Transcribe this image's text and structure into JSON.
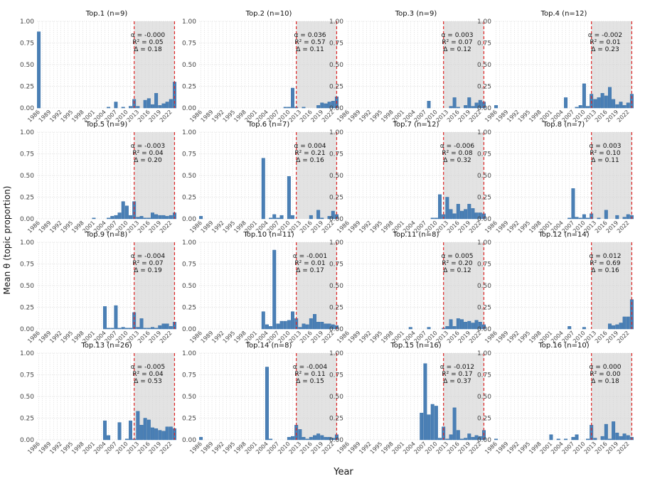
{
  "chart_data": {
    "type": "bar",
    "layout": "facet-grid 4x4",
    "xlabel": "Year",
    "ylabel": "Mean θ (topic proportion)",
    "ylim": [
      0,
      1.0
    ],
    "yticks": [
      "0.00",
      "0.25",
      "0.50",
      "0.75",
      "1.00"
    ],
    "grid": true,
    "bar_color": "#4a7fb5",
    "shade_color": "#e3e3e3",
    "line_color": "#dd2222",
    "xticks": [
      "1986",
      "1989",
      "1992",
      "1995",
      "1998",
      "2001",
      "2004",
      "2007",
      "2010",
      "2013",
      "2016",
      "2019",
      "2022"
    ],
    "year_range": [
      1986,
      2023
    ],
    "shade_range": [
      2012,
      2023
    ],
    "panels": [
      {
        "title": "Top.1 (n=9)",
        "alpha": "α = -0.000",
        "r2": "R² = 0.05",
        "delta": "Δ = 0.18",
        "x": [
          1986,
          2005,
          2007,
          2009,
          2011,
          2012,
          2013,
          2015,
          2016,
          2017,
          2018,
          2019,
          2020,
          2021,
          2022,
          2023
        ],
        "y": [
          0.88,
          0.01,
          0.07,
          0.01,
          0.02,
          0.1,
          0.02,
          0.09,
          0.11,
          0.04,
          0.17,
          0.03,
          0.05,
          0.07,
          0.1,
          0.3
        ]
      },
      {
        "title": "Top.2 (n=10)",
        "alpha": "α = 0.036",
        "r2": "R² = 0.57",
        "delta": "Δ = 0.11",
        "x": [
          2009,
          2010,
          2011,
          2012,
          2014,
          2018,
          2019,
          2020,
          2021,
          2022,
          2023
        ],
        "y": [
          0.01,
          0.01,
          0.23,
          0.01,
          0.01,
          0.03,
          0.06,
          0.05,
          0.07,
          0.08,
          0.13
        ]
      },
      {
        "title": "Top.3 (n=9)",
        "alpha": "α = 0.003",
        "r2": "R² = 0.07",
        "delta": "Δ = 0.12",
        "x": [
          2008,
          2014,
          2015,
          2016,
          2018,
          2019,
          2020,
          2021,
          2022,
          2023
        ],
        "y": [
          0.08,
          0.02,
          0.12,
          0.01,
          0.03,
          0.12,
          0.02,
          0.06,
          0.09,
          0.07
        ]
      },
      {
        "title": "Top.4 (n=12)",
        "alpha": "α = -0.002",
        "r2": "R² = 0.01",
        "delta": "Δ = 0.23",
        "x": [
          1986,
          2005,
          2008,
          2009,
          2010,
          2011,
          2012,
          2013,
          2014,
          2015,
          2016,
          2017,
          2018,
          2019,
          2020,
          2021,
          2022,
          2023
        ],
        "y": [
          0.03,
          0.12,
          0.01,
          0.03,
          0.28,
          0.02,
          0.16,
          0.1,
          0.12,
          0.17,
          0.14,
          0.24,
          0.1,
          0.04,
          0.07,
          0.03,
          0.06,
          0.16
        ]
      },
      {
        "title": "Top.5 (n=9)",
        "alpha": "α = -0.003",
        "r2": "R² = 0.04",
        "delta": "Δ = 0.20",
        "x": [
          2001,
          2005,
          2006,
          2007,
          2008,
          2009,
          2010,
          2011,
          2012,
          2013,
          2014,
          2015,
          2016,
          2017,
          2018,
          2019,
          2020,
          2021,
          2022,
          2023
        ],
        "y": [
          0.01,
          0.01,
          0.03,
          0.04,
          0.07,
          0.2,
          0.15,
          0.04,
          0.2,
          0.02,
          0.03,
          0.01,
          0.01,
          0.07,
          0.05,
          0.04,
          0.04,
          0.03,
          0.04,
          0.07
        ]
      },
      {
        "title": "Top.6 (n=7)",
        "alpha": "α = 0.004",
        "r2": "R² = 0.21",
        "delta": "Δ = 0.16",
        "x": [
          1986,
          2003,
          2005,
          2006,
          2007,
          2008,
          2010,
          2011,
          2016,
          2018,
          2019,
          2021,
          2022,
          2023
        ],
        "y": [
          0.03,
          0.7,
          0.01,
          0.05,
          0.01,
          0.04,
          0.49,
          0.04,
          0.04,
          0.1,
          0.01,
          0.03,
          0.09,
          0.05
        ]
      },
      {
        "title": "Top.7 (n=12)",
        "alpha": "α = -0.006",
        "r2": "R² = 0.08",
        "delta": "Δ = 0.32",
        "x": [
          2009,
          2010,
          2011,
          2012,
          2013,
          2014,
          2015,
          2016,
          2017,
          2018,
          2019,
          2020,
          2021,
          2022,
          2023
        ],
        "y": [
          0.01,
          0.01,
          0.28,
          0.05,
          0.25,
          0.11,
          0.06,
          0.17,
          0.09,
          0.11,
          0.17,
          0.12,
          0.07,
          0.07,
          0.06
        ]
      },
      {
        "title": "Top.8 (n=7)",
        "alpha": "α = 0.003",
        "r2": "R² = 0.10",
        "delta": "Δ = 0.11",
        "x": [
          2006,
          2007,
          2008,
          2009,
          2010,
          2011,
          2012,
          2014,
          2016,
          2019,
          2021,
          2022,
          2023
        ],
        "y": [
          0.01,
          0.35,
          0.02,
          0.01,
          0.05,
          0.01,
          0.06,
          0.01,
          0.1,
          0.04,
          0.02,
          0.05,
          0.04
        ]
      },
      {
        "title": "Top.9 (n=8)",
        "alpha": "α = -0.004",
        "r2": "R² = 0.07",
        "delta": "Δ = 0.19",
        "x": [
          2004,
          2005,
          2006,
          2007,
          2008,
          2009,
          2010,
          2011,
          2012,
          2013,
          2014,
          2015,
          2016,
          2017,
          2018,
          2019,
          2020,
          2021,
          2022,
          2023
        ],
        "y": [
          0.26,
          0.01,
          0.01,
          0.27,
          0.01,
          0.02,
          0.01,
          0.01,
          0.19,
          0.02,
          0.12,
          0.01,
          0.01,
          0.02,
          0.01,
          0.04,
          0.06,
          0.06,
          0.03,
          0.08
        ]
      },
      {
        "title": "Top.10 (n=11)",
        "alpha": "α = -0.001",
        "r2": "R² = 0.01",
        "delta": "Δ = 0.17",
        "x": [
          2003,
          2004,
          2005,
          2006,
          2007,
          2008,
          2009,
          2010,
          2011,
          2012,
          2013,
          2014,
          2015,
          2016,
          2017,
          2018,
          2019,
          2020,
          2021,
          2022,
          2023
        ],
        "y": [
          0.2,
          0.05,
          0.03,
          0.91,
          0.06,
          0.09,
          0.09,
          0.1,
          0.2,
          0.12,
          0.02,
          0.06,
          0.05,
          0.12,
          0.17,
          0.08,
          0.08,
          0.06,
          0.06,
          0.05,
          0.04
        ]
      },
      {
        "title": "Top.11 (n=8)",
        "alpha": "α = 0.005",
        "r2": "R² = 0.20",
        "delta": "Δ = 0.12",
        "x": [
          2003,
          2008,
          2012,
          2013,
          2014,
          2015,
          2016,
          2017,
          2018,
          2019,
          2020,
          2021,
          2022,
          2023
        ],
        "y": [
          0.02,
          0.02,
          0.01,
          0.03,
          0.11,
          0.03,
          0.12,
          0.11,
          0.08,
          0.09,
          0.07,
          0.1,
          0.08,
          0.05
        ]
      },
      {
        "title": "Top.12 (n=14)",
        "alpha": "α = 0.012",
        "r2": "R² = 0.69",
        "delta": "Δ = 0.16",
        "x": [
          2006,
          2010,
          2017,
          2018,
          2019,
          2020,
          2021,
          2022,
          2023
        ],
        "y": [
          0.03,
          0.02,
          0.06,
          0.04,
          0.05,
          0.07,
          0.14,
          0.14,
          0.34
        ]
      },
      {
        "title": "Top.13 (n=26)",
        "alpha": "α = -0.005",
        "r2": "R² = 0.04",
        "delta": "Δ = 0.53",
        "x": [
          2004,
          2005,
          2008,
          2010,
          2011,
          2012,
          2013,
          2014,
          2015,
          2016,
          2017,
          2018,
          2019,
          2020,
          2021,
          2022,
          2023
        ],
        "y": [
          0.22,
          0.05,
          0.2,
          0.01,
          0.22,
          0.01,
          0.33,
          0.17,
          0.25,
          0.23,
          0.14,
          0.13,
          0.11,
          0.1,
          0.15,
          0.15,
          0.13
        ]
      },
      {
        "title": "Top.14 (n=8)",
        "alpha": "α = -0.004",
        "r2": "R² = 0.11",
        "delta": "Δ = 0.15",
        "x": [
          1986,
          2004,
          2005,
          2010,
          2011,
          2012,
          2013,
          2014,
          2015,
          2016,
          2017,
          2018,
          2019,
          2020,
          2021,
          2022,
          2023
        ],
        "y": [
          0.03,
          0.84,
          0.01,
          0.03,
          0.04,
          0.17,
          0.12,
          0.03,
          0.01,
          0.03,
          0.05,
          0.07,
          0.05,
          0.03,
          0.03,
          0.02,
          0.06
        ]
      },
      {
        "title": "Top.15 (n=16)",
        "alpha": "α = -0.012",
        "r2": "R² = 0.17",
        "delta": "Δ = 0.37",
        "x": [
          2006,
          2007,
          2008,
          2009,
          2010,
          2011,
          2012,
          2013,
          2014,
          2015,
          2016,
          2017,
          2018,
          2019,
          2020,
          2021,
          2022,
          2023
        ],
        "y": [
          0.31,
          0.88,
          0.29,
          0.41,
          0.39,
          0.02,
          0.15,
          0.01,
          0.06,
          0.37,
          0.11,
          0.01,
          0.02,
          0.07,
          0.03,
          0.05,
          0.04,
          0.11
        ]
      },
      {
        "title": "Top.16 (n=10)",
        "alpha": "α = 0.000",
        "r2": "R² = 0.00",
        "delta": "Δ = 0.18",
        "x": [
          1986,
          2001,
          2003,
          2005,
          2007,
          2008,
          2011,
          2012,
          2013,
          2015,
          2016,
          2017,
          2018,
          2019,
          2020,
          2021,
          2022,
          2023
        ],
        "y": [
          0.01,
          0.06,
          0.01,
          0.01,
          0.03,
          0.06,
          0.01,
          0.17,
          0.02,
          0.04,
          0.18,
          0.01,
          0.21,
          0.08,
          0.04,
          0.07,
          0.05,
          0.03
        ]
      }
    ]
  }
}
